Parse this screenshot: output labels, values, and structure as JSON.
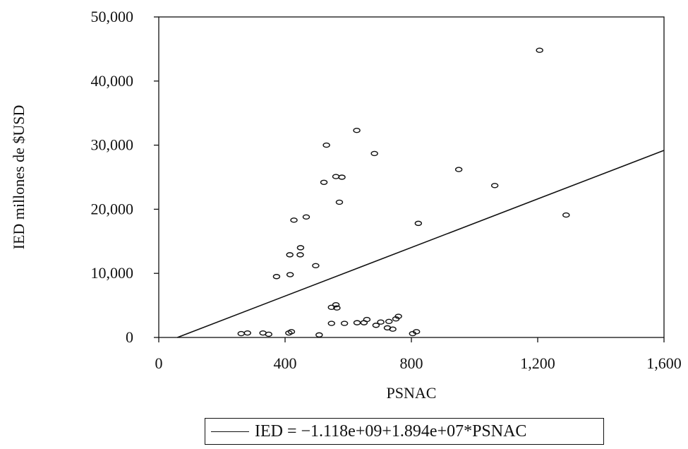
{
  "chart_data": {
    "type": "scatter",
    "title": "",
    "xlabel": "PSNAC",
    "ylabel": "IED millones de $USD",
    "xlim": [
      0,
      1600
    ],
    "ylim": [
      0,
      50000
    ],
    "x_ticks": [
      0,
      400,
      800,
      1200,
      1600
    ],
    "x_tick_labels": [
      "0",
      "400",
      "800",
      "1,200",
      "1,600"
    ],
    "y_ticks": [
      0,
      10000,
      20000,
      30000,
      40000,
      50000
    ],
    "y_tick_labels": [
      "0",
      "10,000",
      "20,000",
      "30,000",
      "40,000",
      "50,000"
    ],
    "grid": false,
    "legend": "bottom-center",
    "marker": "open-circle",
    "points": [
      {
        "x": 261,
        "y": 600
      },
      {
        "x": 281,
        "y": 700
      },
      {
        "x": 330,
        "y": 700
      },
      {
        "x": 348,
        "y": 500
      },
      {
        "x": 412,
        "y": 700
      },
      {
        "x": 420,
        "y": 900
      },
      {
        "x": 508,
        "y": 400
      },
      {
        "x": 373,
        "y": 9500
      },
      {
        "x": 416,
        "y": 9800
      },
      {
        "x": 415,
        "y": 12900
      },
      {
        "x": 448,
        "y": 12900
      },
      {
        "x": 449,
        "y": 14000
      },
      {
        "x": 497,
        "y": 11200
      },
      {
        "x": 428,
        "y": 18300
      },
      {
        "x": 467,
        "y": 18800
      },
      {
        "x": 523,
        "y": 24200
      },
      {
        "x": 531,
        "y": 30000
      },
      {
        "x": 561,
        "y": 25100
      },
      {
        "x": 580,
        "y": 25000
      },
      {
        "x": 572,
        "y": 21100
      },
      {
        "x": 627,
        "y": 32300
      },
      {
        "x": 683,
        "y": 28700
      },
      {
        "x": 547,
        "y": 4700
      },
      {
        "x": 561,
        "y": 5100
      },
      {
        "x": 564,
        "y": 4600
      },
      {
        "x": 547,
        "y": 2200
      },
      {
        "x": 588,
        "y": 2200
      },
      {
        "x": 628,
        "y": 2300
      },
      {
        "x": 650,
        "y": 2300
      },
      {
        "x": 659,
        "y": 2800
      },
      {
        "x": 688,
        "y": 1900
      },
      {
        "x": 703,
        "y": 2400
      },
      {
        "x": 724,
        "y": 1500
      },
      {
        "x": 729,
        "y": 2500
      },
      {
        "x": 741,
        "y": 1300
      },
      {
        "x": 751,
        "y": 2900
      },
      {
        "x": 759,
        "y": 3300
      },
      {
        "x": 804,
        "y": 600
      },
      {
        "x": 816,
        "y": 900
      },
      {
        "x": 822,
        "y": 17800
      },
      {
        "x": 950,
        "y": 26200
      },
      {
        "x": 1064,
        "y": 23700
      },
      {
        "x": 1206,
        "y": 44800
      },
      {
        "x": 1290,
        "y": 19100
      }
    ],
    "fit_line": {
      "intercept": -1118,
      "slope": 18.94,
      "x_range": [
        59,
        1600
      ]
    },
    "legend_entries": [
      "IED = −1.118e+09+1.894e+07*PSNAC"
    ]
  }
}
